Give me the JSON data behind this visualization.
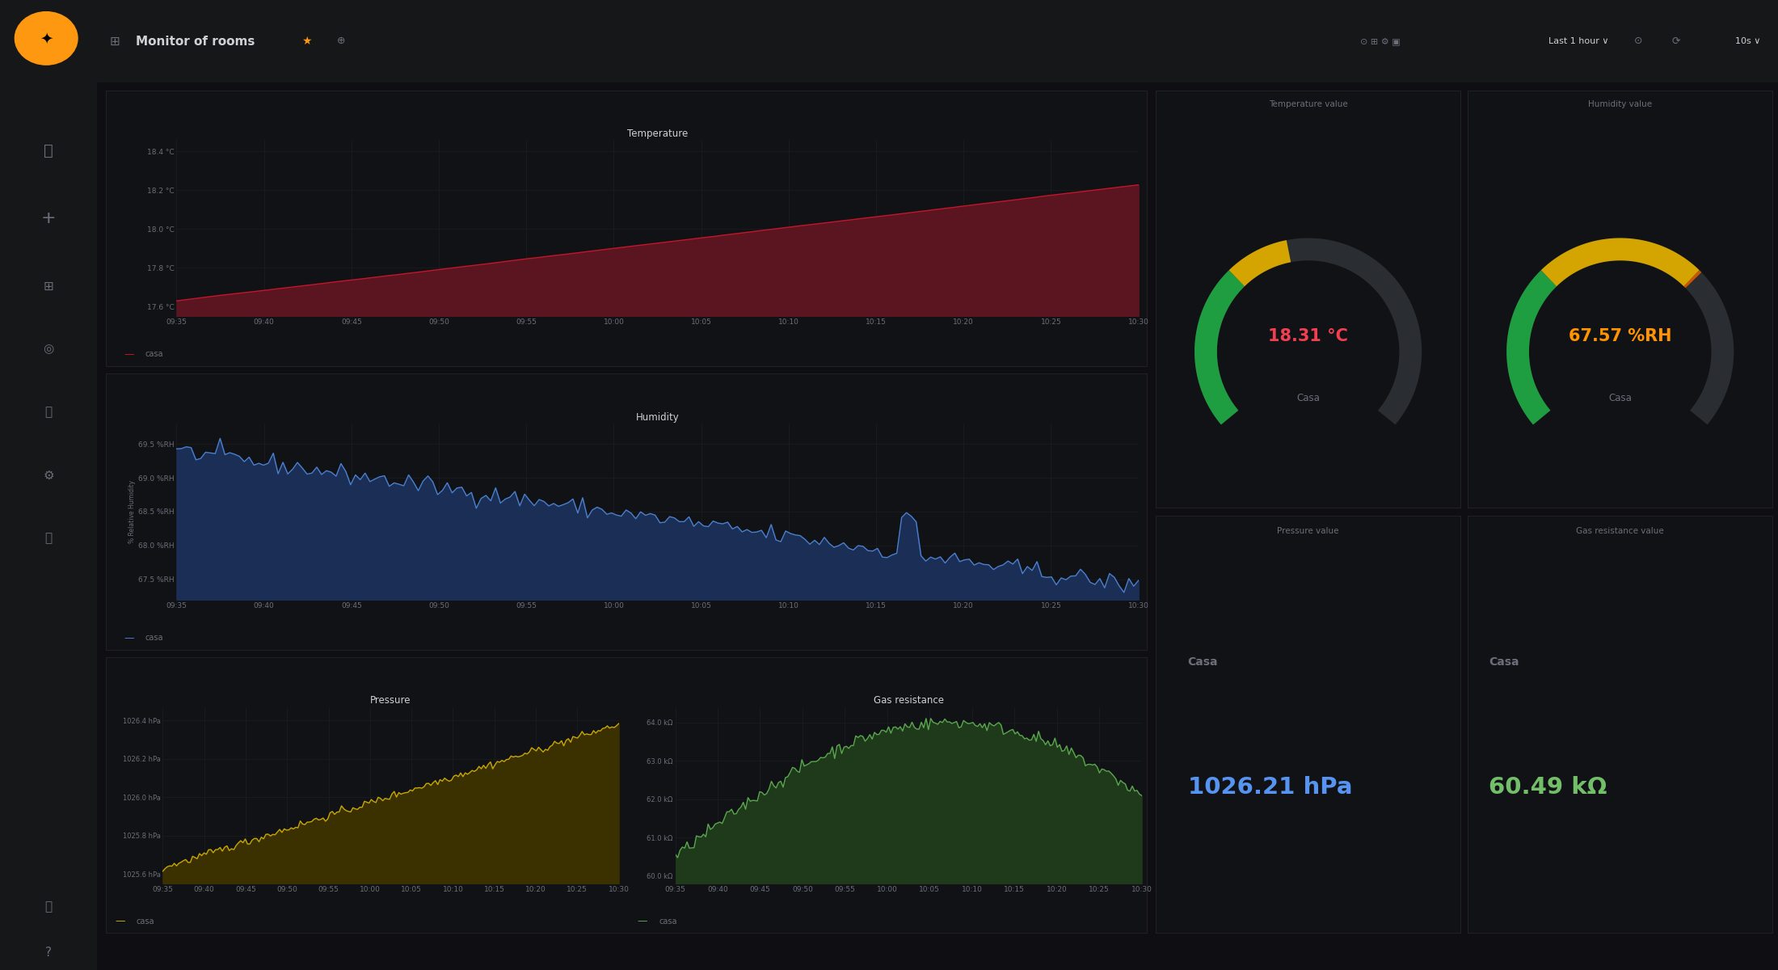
{
  "bg_color": "#0f0f13",
  "sidebar_bg": "#161719",
  "header_bg": "#161719",
  "panel_bg": "#111216",
  "border_color": "#252527",
  "text_color": "#d0d1d4",
  "dim_text": "#6c6f7a",
  "grid_color": "#1f2124",
  "title": "Monitor of rooms",
  "time_labels": [
    "09:35",
    "09:40",
    "09:45",
    "09:50",
    "09:55",
    "10:00",
    "10:05",
    "10:10",
    "10:15",
    "10:20",
    "10:25",
    "10:30"
  ],
  "temp_title": "Temperature",
  "temp_color": "#c4162a",
  "temp_fill_top": "#5a1520",
  "temp_fill_bot": "#1a0508",
  "humidity_title": "Humidity",
  "humidity_color": "#4a7fcb",
  "humidity_fill_top": "#1a2e56",
  "humidity_fill_bot": "#0a0e1e",
  "humidity_ylabel": "% Relative Humidity",
  "pressure_title": "Pressure",
  "pressure_color": "#c8a800",
  "pressure_fill_top": "#3a3000",
  "pressure_fill_bot": "#0e0c00",
  "gas_title": "Gas resistance",
  "gas_color": "#5aa64e",
  "gas_fill_top": "#1e3a1a",
  "gas_fill_bot": "#080f07",
  "temp_value": "18.31 °C",
  "temp_value_color": "#f04050",
  "humidity_value": "67.57 %RH",
  "humidity_value_color": "#ff9400",
  "pressure_label": "Casa",
  "pressure_value": "1026.21 hPa",
  "pressure_value_color": "#5794f2",
  "gas_label": "Casa",
  "gas_value": "60.49 kΩ",
  "gas_value_color": "#73bf69",
  "gauge_temp_title": "Temperature value",
  "gauge_hum_title": "Humidity value",
  "gauge_pres_title": "Pressure value",
  "gauge_gas_title": "Gas resistance value",
  "gauge_casa": "Casa",
  "orange": "#ff9411",
  "grafana_orange": "#ff9811"
}
